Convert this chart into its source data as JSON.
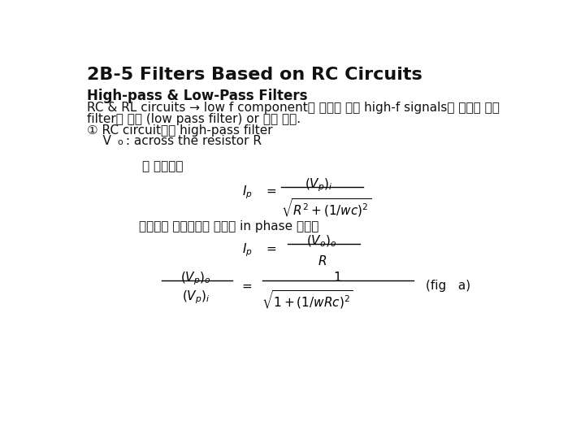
{
  "background_color": "#ffffff",
  "title": "2B-5 Filters Based on RC Circuits",
  "title_fontsize": 16,
  "subtitle": "High-pass & Low-Pass Filters",
  "subtitle_fontsize": 12,
  "body_fontsize": 11,
  "eq_fontsize": 11,
  "korean_fontsize": 11,
  "line1": "RC & RL circuits → low f component를 지나는 동안 high-f signals을 낙추기 위해",
  "line2": "filter로 사용 (low pass filter) or 역이 성립.",
  "line3": "① RC circuit에서 high-pass filter",
  "line4_pre": "    V",
  "line4_sub": "o",
  "line4_post": " : across the resistor R",
  "korean_label1": "이 회로에서",
  "korean_label2": "저항에서 전압강하는 전류와 in phase 이며로",
  "fig_note": "(fig   a)"
}
